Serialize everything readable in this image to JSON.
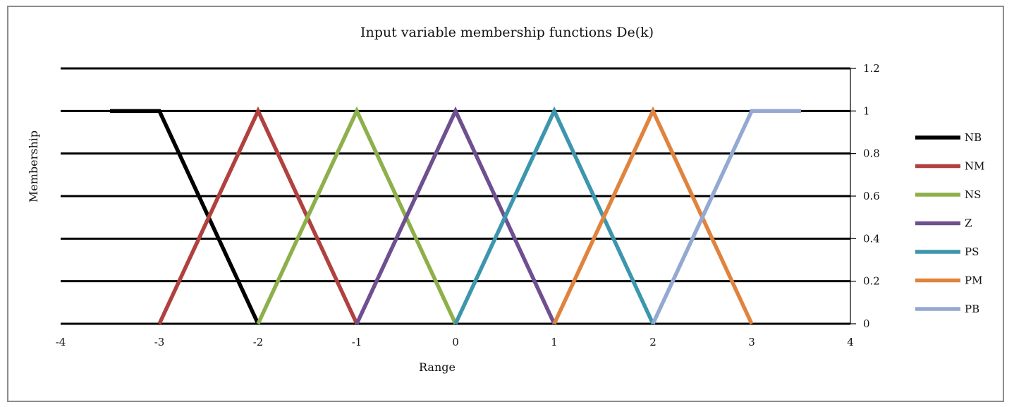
{
  "chart_data": {
    "type": "line",
    "title": "Input variable membership functions De(k)",
    "xlabel": "Range",
    "ylabel": "Membership",
    "xlim": [
      -4,
      4
    ],
    "ylim": [
      0,
      1.2
    ],
    "x_ticks": [
      "-4",
      "-3",
      "-2",
      "-1",
      "0",
      "1",
      "2",
      "3",
      "4"
    ],
    "y_ticks": [
      "0",
      "0.2",
      "0.4",
      "0.6",
      "0.8",
      "1",
      "1.2"
    ],
    "y_axis_side": "right",
    "grid": "horizontal",
    "legend_position": "right",
    "series": [
      {
        "name": "NB",
        "color": "#000000",
        "x": [
          -3.5,
          -3,
          -2
        ],
        "y": [
          1,
          1,
          0
        ]
      },
      {
        "name": "NM",
        "color": "#b0413e",
        "x": [
          -3,
          -2,
          -1
        ],
        "y": [
          0,
          1,
          0
        ]
      },
      {
        "name": "NS",
        "color": "#8db04a",
        "x": [
          -2,
          -1,
          0
        ],
        "y": [
          0,
          1,
          0
        ]
      },
      {
        "name": "Z",
        "color": "#6e4f8f",
        "x": [
          -1,
          0,
          1
        ],
        "y": [
          0,
          1,
          0
        ]
      },
      {
        "name": "PS",
        "color": "#3c96ad",
        "x": [
          0,
          1,
          2
        ],
        "y": [
          0,
          1,
          0
        ]
      },
      {
        "name": "PM",
        "color": "#e0833d",
        "x": [
          1,
          2,
          3
        ],
        "y": [
          0,
          1,
          0
        ]
      },
      {
        "name": "PB",
        "color": "#93a9d1",
        "x": [
          2,
          3,
          3.5
        ],
        "y": [
          0,
          1,
          1
        ]
      }
    ]
  }
}
